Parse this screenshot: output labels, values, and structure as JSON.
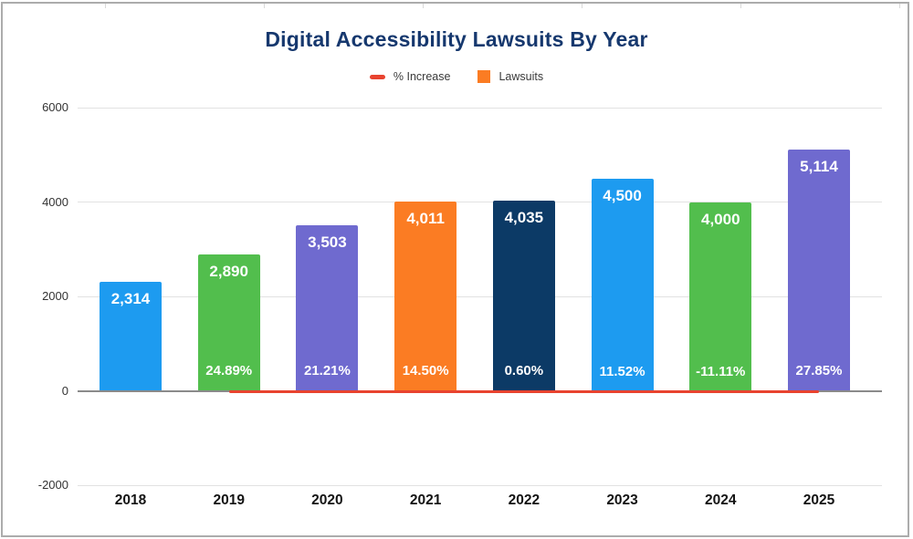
{
  "page": {
    "background": "#ffffff",
    "frame_border_color": "#acacac"
  },
  "chart_data": {
    "type": "bar",
    "title": "Digital Accessibility Lawsuits By Year",
    "title_color": "#16386E",
    "categories": [
      "2018",
      "2019",
      "2020",
      "2021",
      "2022",
      "2023",
      "2024",
      "2025"
    ],
    "series": [
      {
        "name": "Lawsuits",
        "type": "bar",
        "values": [
          2314,
          2890,
          3503,
          4011,
          4035,
          4500,
          4000,
          5114
        ],
        "value_labels": [
          "2,314",
          "2,890",
          "3,503",
          "4,011",
          "4,035",
          "4,500",
          "4,000",
          "5,114"
        ],
        "bar_colors": [
          "#1D9BF0",
          "#52BE4D",
          "#6F6ACF",
          "#FB7C23",
          "#0C3A66",
          "#1D9BF0",
          "#52BE4D",
          "#6F6ACF"
        ]
      },
      {
        "name": "% Increase",
        "type": "line",
        "color": "#E8432F",
        "values": [
          null,
          24.89,
          21.21,
          14.5,
          0.6,
          11.52,
          -11.11,
          27.85
        ],
        "value_labels": [
          null,
          "24.89%",
          "21.21%",
          "14.50%",
          "0.60%",
          "11.52%",
          "-11.11%",
          "27.85%"
        ]
      }
    ],
    "y_axis": {
      "ticks": [
        6000,
        4000,
        2000,
        0,
        -2000
      ],
      "tick_labels": [
        "6000",
        "4000",
        "2000",
        "0",
        "-2000"
      ],
      "range": [
        -2000,
        6000
      ]
    },
    "grid": true,
    "legend_position": "top",
    "legend": [
      {
        "label": "% Increase",
        "swatch": "line-dash",
        "color": "#E8432F"
      },
      {
        "label": "Lawsuits",
        "swatch": "square",
        "color": "#FB7C23"
      }
    ]
  }
}
